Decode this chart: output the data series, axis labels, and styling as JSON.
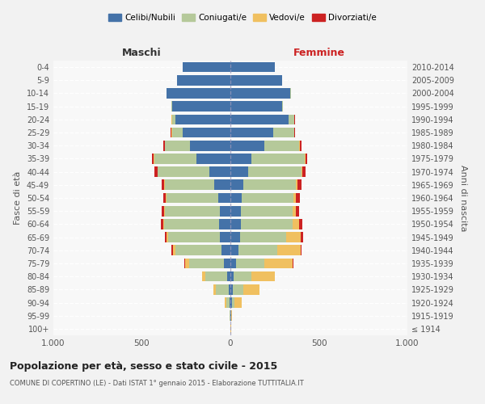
{
  "age_groups": [
    "100+",
    "95-99",
    "90-94",
    "85-89",
    "80-84",
    "75-79",
    "70-74",
    "65-69",
    "60-64",
    "55-59",
    "50-54",
    "45-49",
    "40-44",
    "35-39",
    "30-34",
    "25-29",
    "20-24",
    "15-19",
    "10-14",
    "5-9",
    "0-4"
  ],
  "birth_years": [
    "≤ 1914",
    "1915-1919",
    "1920-1924",
    "1925-1929",
    "1930-1934",
    "1935-1939",
    "1940-1944",
    "1945-1949",
    "1950-1954",
    "1955-1959",
    "1960-1964",
    "1965-1969",
    "1970-1974",
    "1975-1979",
    "1980-1984",
    "1985-1989",
    "1990-1994",
    "1995-1999",
    "2000-2004",
    "2005-2009",
    "2010-2014"
  ],
  "male": {
    "celibi": [
      2,
      2,
      5,
      10,
      20,
      35,
      50,
      60,
      65,
      60,
      70,
      90,
      120,
      190,
      230,
      270,
      310,
      330,
      360,
      300,
      270
    ],
    "coniugati": [
      0,
      2,
      20,
      70,
      120,
      200,
      260,
      290,
      310,
      310,
      290,
      280,
      290,
      240,
      140,
      60,
      20,
      5,
      2,
      0,
      0
    ],
    "vedovi": [
      0,
      0,
      5,
      15,
      20,
      20,
      15,
      10,
      5,
      5,
      4,
      3,
      2,
      2,
      2,
      2,
      2,
      0,
      0,
      0,
      0
    ],
    "divorziati": [
      0,
      0,
      0,
      0,
      2,
      5,
      8,
      10,
      12,
      12,
      14,
      16,
      15,
      10,
      8,
      5,
      2,
      0,
      0,
      0,
      0
    ]
  },
  "female": {
    "nubili": [
      2,
      3,
      8,
      15,
      20,
      30,
      45,
      55,
      60,
      60,
      65,
      75,
      100,
      120,
      190,
      240,
      330,
      290,
      340,
      290,
      250
    ],
    "coniugate": [
      0,
      2,
      15,
      60,
      100,
      160,
      220,
      260,
      290,
      290,
      290,
      295,
      300,
      300,
      200,
      120,
      30,
      8,
      2,
      0,
      0
    ],
    "vedove": [
      2,
      5,
      40,
      90,
      130,
      160,
      130,
      80,
      40,
      20,
      15,
      10,
      5,
      3,
      3,
      2,
      2,
      0,
      0,
      0,
      0
    ],
    "divorziate": [
      0,
      0,
      0,
      0,
      2,
      5,
      8,
      15,
      18,
      20,
      22,
      20,
      18,
      12,
      10,
      5,
      2,
      0,
      0,
      0,
      0
    ]
  },
  "colors": {
    "celibi_nubili": "#4472a8",
    "coniugati": "#b5c99a",
    "vedovi": "#f0c060",
    "divorziati": "#cc2222"
  },
  "xlim": 1000,
  "title": "Popolazione per età, sesso e stato civile - 2015",
  "subtitle": "COMUNE DI COPERTINO (LE) - Dati ISTAT 1° gennaio 2015 - Elaborazione TUTTITALIA.IT",
  "ylabel_left": "Fasce di età",
  "ylabel_right": "Anni di nascita",
  "xlabel_left": "Maschi",
  "xlabel_right": "Femmine"
}
